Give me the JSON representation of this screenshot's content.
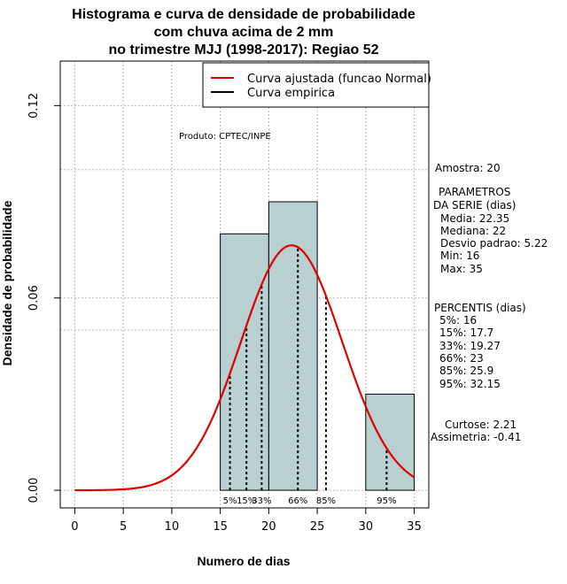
{
  "chart_data": {
    "type": "bar",
    "title": [
      "Histograma e curva de densidade de probabilidade",
      "com chuva acima de 2 mm",
      "no trimestre MJJ (1998-2017): Regiao 52"
    ],
    "xlabel": "Numero de dias",
    "ylabel": "Densidade de probabilidade",
    "xlim": [
      -1.5,
      36.5
    ],
    "ylim": [
      -0.0055,
      0.1339
    ],
    "xticks": [
      0,
      5,
      10,
      15,
      20,
      25,
      30,
      35
    ],
    "yticks": [
      0.0,
      0.06,
      0.12
    ],
    "ytick_labels": [
      "0.00",
      "0.06",
      "0.12"
    ],
    "grid_x": [
      0,
      5,
      10,
      15,
      20,
      25,
      30,
      35
    ],
    "grid_y": [
      0.0,
      0.05,
      0.06,
      0.1,
      0.12
    ],
    "histogram": [
      {
        "start": 15,
        "end": 20,
        "density": 0.08
      },
      {
        "start": 20,
        "end": 25,
        "density": 0.09
      },
      {
        "start": 30,
        "end": 35,
        "density": 0.03
      }
    ],
    "normal_curve": {
      "mean": 22.35,
      "sd": 5.22,
      "x_range": [
        0,
        35
      ],
      "color": "#e00000"
    },
    "percentile_lines": [
      {
        "label": "5%",
        "x": 16
      },
      {
        "label": "15%",
        "x": 17.7
      },
      {
        "label": "33%",
        "x": 19.27
      },
      {
        "label": "66%",
        "x": 23
      },
      {
        "label": "85%",
        "x": 25.9
      },
      {
        "label": "95%",
        "x": 32.15
      }
    ],
    "legend": {
      "position": "top-right",
      "entries": [
        {
          "label": "Curva ajustada (funcao Normal)",
          "color": "#e00000"
        },
        {
          "label": "Curva empirica",
          "color": "#000000"
        }
      ]
    },
    "bar_color": "#b8d0d0"
  },
  "annotations": {
    "produto": "Produto: CPTEC/INPE",
    "amostra": "Amostra: 20",
    "parametros_title": [
      "PARAMETROS",
      "DA SERIE (dias)"
    ],
    "parametros": [
      "Media: 22.35",
      "Mediana: 22",
      "Desvio padrao: 5.22",
      "Min: 16",
      "Max: 35"
    ],
    "percentis_title": "PERCENTIS (dias)",
    "percentis": [
      "5%: 16",
      "15%: 17.7",
      "33%: 19.27",
      "66%: 23",
      "85%: 25.9",
      "95%: 32.15"
    ],
    "curtose": "Curtose: 2.21",
    "assimetria": "Assimetria: -0.41"
  }
}
